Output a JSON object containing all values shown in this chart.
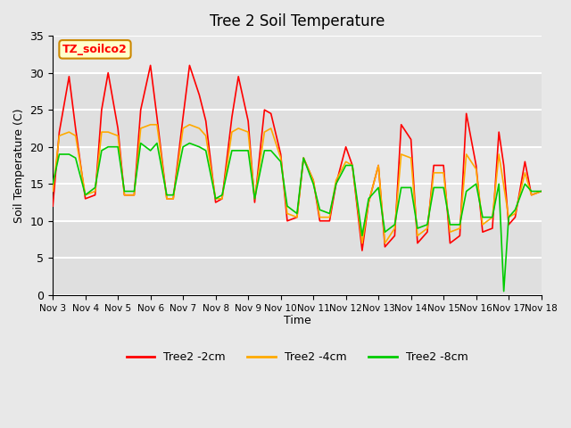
{
  "title": "Tree 2 Soil Temperature",
  "xlabel": "Time",
  "ylabel": "Soil Temperature (C)",
  "ylim": [
    0,
    35
  ],
  "xlim": [
    0,
    15
  ],
  "x_tick_labels": [
    "Nov 3",
    "Nov 4",
    "Nov 5",
    "Nov 6",
    "Nov 7",
    "Nov 8",
    "Nov 9",
    "Nov 10",
    "Nov 11",
    "Nov 12",
    "Nov 13",
    "Nov 14",
    "Nov 15",
    "Nov 16",
    "Nov 17",
    "Nov 18"
  ],
  "legend_label_box": "TZ_soilco2",
  "legend_box_facecolor": "#ffffcc",
  "legend_box_edgecolor": "#cc8800",
  "background_color": "#e8e8e8",
  "plot_bg_color": "#e8e8e8",
  "grid_color": "#ffffff",
  "series": {
    "red": {
      "label": "Tree2 -2cm",
      "color": "#ff0000",
      "lw": 1.2
    },
    "orange": {
      "label": "Tree2 -4cm",
      "color": "#ffaa00",
      "lw": 1.2
    },
    "green": {
      "label": "Tree2 -8cm",
      "color": "#00cc00",
      "lw": 1.2
    }
  },
  "red_x": [
    0,
    0.2,
    0.5,
    0.7,
    1.0,
    1.3,
    1.5,
    1.7,
    2.0,
    2.2,
    2.5,
    2.7,
    3.0,
    3.2,
    3.5,
    3.7,
    4.0,
    4.2,
    4.5,
    4.7,
    5.0,
    5.2,
    5.5,
    5.7,
    6.0,
    6.2,
    6.5,
    6.7,
    7.0,
    7.2,
    7.5,
    7.7,
    8.0,
    8.2,
    8.5,
    8.7,
    9.0,
    9.2,
    9.5,
    9.7,
    10.0,
    10.2,
    10.5,
    10.7,
    11.0,
    11.2,
    11.5,
    11.7,
    12.0,
    12.2,
    12.5,
    12.7,
    13.0,
    13.2,
    13.5,
    13.7,
    13.85,
    14.0,
    14.2,
    14.5,
    14.7,
    15.0
  ],
  "red_y": [
    12.0,
    22.0,
    29.5,
    22.5,
    13.0,
    13.5,
    25.0,
    30.0,
    22.5,
    13.5,
    13.5,
    25.0,
    31.0,
    24.0,
    13.0,
    13.0,
    24.0,
    31.0,
    27.0,
    23.5,
    12.5,
    13.0,
    24.0,
    29.5,
    23.5,
    12.5,
    25.0,
    24.5,
    19.0,
    10.0,
    10.5,
    18.5,
    15.5,
    10.0,
    10.0,
    15.0,
    20.0,
    17.5,
    6.0,
    12.5,
    17.5,
    6.5,
    8.0,
    23.0,
    21.0,
    7.0,
    8.5,
    17.5,
    17.5,
    7.0,
    8.0,
    24.5,
    17.5,
    8.5,
    9.0,
    22.0,
    17.5,
    9.5,
    10.5,
    18.0,
    13.5,
    14.0
  ],
  "orange_x": [
    0,
    0.2,
    0.5,
    0.7,
    1.0,
    1.3,
    1.5,
    1.7,
    2.0,
    2.2,
    2.5,
    2.7,
    3.0,
    3.2,
    3.5,
    3.7,
    4.0,
    4.2,
    4.5,
    4.7,
    5.0,
    5.2,
    5.5,
    5.7,
    6.0,
    6.2,
    6.5,
    6.7,
    7.0,
    7.2,
    7.5,
    7.7,
    8.0,
    8.2,
    8.5,
    8.7,
    9.0,
    9.2,
    9.5,
    9.7,
    10.0,
    10.2,
    10.5,
    10.7,
    11.0,
    11.2,
    11.5,
    11.7,
    12.0,
    12.2,
    12.5,
    12.7,
    13.0,
    13.2,
    13.5,
    13.7,
    14.0,
    14.2,
    14.5,
    14.7,
    15.0
  ],
  "orange_y": [
    14.0,
    21.5,
    22.0,
    21.5,
    13.5,
    14.0,
    22.0,
    22.0,
    21.5,
    13.5,
    13.5,
    22.5,
    23.0,
    23.0,
    13.0,
    13.0,
    22.5,
    23.0,
    22.5,
    21.5,
    13.0,
    13.0,
    22.0,
    22.5,
    22.0,
    13.0,
    22.0,
    22.5,
    18.5,
    11.0,
    10.5,
    18.5,
    15.5,
    10.5,
    10.5,
    15.5,
    18.0,
    17.5,
    7.0,
    12.5,
    17.5,
    7.0,
    9.0,
    19.0,
    18.5,
    8.0,
    9.0,
    16.5,
    16.5,
    8.5,
    9.0,
    19.0,
    17.0,
    9.5,
    10.5,
    19.0,
    10.5,
    11.0,
    16.5,
    13.5,
    14.0
  ],
  "green_x": [
    0,
    0.2,
    0.5,
    0.7,
    1.0,
    1.3,
    1.5,
    1.7,
    2.0,
    2.2,
    2.5,
    2.7,
    3.0,
    3.2,
    3.5,
    3.7,
    4.0,
    4.2,
    4.5,
    4.7,
    5.0,
    5.2,
    5.5,
    5.7,
    6.0,
    6.2,
    6.5,
    6.7,
    7.0,
    7.2,
    7.5,
    7.7,
    8.0,
    8.2,
    8.5,
    8.7,
    9.0,
    9.2,
    9.5,
    9.7,
    10.0,
    10.2,
    10.5,
    10.7,
    11.0,
    11.2,
    11.5,
    11.7,
    12.0,
    12.2,
    12.5,
    12.7,
    13.0,
    13.2,
    13.5,
    13.7,
    13.85,
    14.0,
    14.2,
    14.5,
    14.7,
    15.0
  ],
  "green_y": [
    15.0,
    19.0,
    19.0,
    18.5,
    13.5,
    14.5,
    19.5,
    20.0,
    20.0,
    14.0,
    14.0,
    20.5,
    19.5,
    20.5,
    13.5,
    13.5,
    20.0,
    20.5,
    20.0,
    19.5,
    13.0,
    13.5,
    19.5,
    19.5,
    19.5,
    13.0,
    19.5,
    19.5,
    18.0,
    12.0,
    11.0,
    18.5,
    15.0,
    11.5,
    11.0,
    15.0,
    17.5,
    17.5,
    8.0,
    13.0,
    14.5,
    8.5,
    9.5,
    14.5,
    14.5,
    9.0,
    9.5,
    14.5,
    14.5,
    9.5,
    9.5,
    14.0,
    15.0,
    10.5,
    10.5,
    15.0,
    0.5,
    10.5,
    11.5,
    15.0,
    14.0,
    14.0
  ]
}
